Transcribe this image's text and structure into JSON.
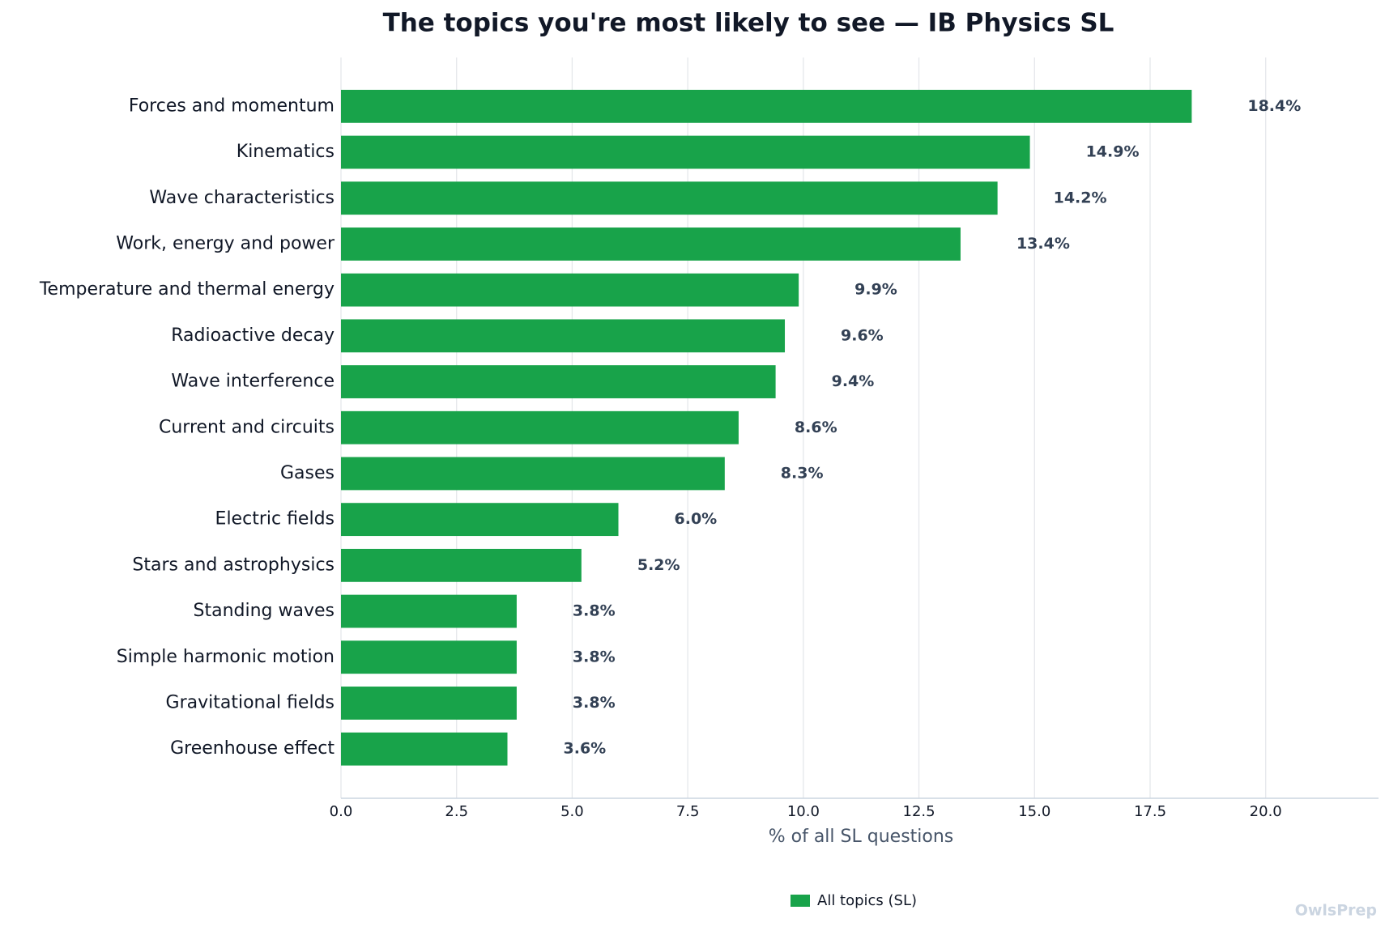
{
  "chart_data": {
    "type": "barh",
    "title": "The topics you're most likely to see — IB Physics SL",
    "x_label": "% of all SL questions",
    "categories": [
      "Forces and momentum",
      "Kinematics",
      "Wave characteristics",
      "Work, energy and power",
      "Temperature and thermal energy",
      "Radioactive decay",
      "Wave interference",
      "Current and circuits",
      "Gases",
      "Electric fields",
      "Stars and astrophysics",
      "Standing waves",
      "Simple harmonic motion",
      "Gravitational fields",
      "Greenhouse effect"
    ],
    "series": [
      {
        "name": "All topics (SL)",
        "color": "#18a34a",
        "values": [
          18.4,
          14.9,
          14.2,
          13.4,
          9.9,
          9.6,
          9.4,
          8.6,
          8.3,
          6.0,
          5.2,
          3.8,
          3.8,
          3.8,
          3.6
        ],
        "value_labels": [
          "18.4%",
          "14.9%",
          "14.2%",
          "13.4%",
          "9.9%",
          "9.6%",
          "9.4%",
          "8.6%",
          "8.3%",
          "6.0%",
          "5.2%",
          "3.8%",
          "3.8%",
          "3.8%",
          "3.6%"
        ]
      }
    ],
    "xlim": [
      0,
      22.44
    ],
    "xticks": [
      {
        "value": 0,
        "label": "0.0"
      },
      2.5,
      {
        "value": 5,
        "label": "5.0"
      },
      7.5,
      {
        "value": 10,
        "label": "10.0"
      },
      12.5,
      {
        "value": 15,
        "label": "15.0"
      },
      17.5,
      {
        "value": 20,
        "label": "20.0"
      }
    ],
    "grid": true,
    "legend": "bottom",
    "watermark": "OwlsPrep"
  }
}
